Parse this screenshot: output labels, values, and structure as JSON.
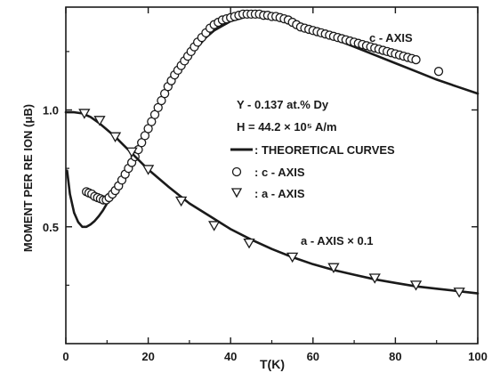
{
  "chart_data": {
    "type": "line",
    "xlabel": "T(K)",
    "ylabel": "MOMENT PER RE ION (μB)",
    "xlim": [
      0,
      100
    ],
    "ylim": [
      0,
      1.44
    ],
    "x_ticks": [
      0,
      20,
      40,
      60,
      80,
      100
    ],
    "x_tick_labels": [
      "0",
      "20",
      "40",
      "60",
      "80",
      "100"
    ],
    "y_ticks": [
      0.5,
      1.0
    ],
    "y_tick_labels": [
      "0.5",
      "1.0"
    ],
    "grid": false,
    "legend_position": "upper-middle",
    "legend": {
      "lines": [
        "Y - 0.137 at.% Dy",
        "H = 44.2 × 10⁵ A/m"
      ],
      "items": [
        {
          "marker": "line",
          "label": ": THEORETICAL CURVES"
        },
        {
          "marker": "circle",
          "label": ": c - AXIS"
        },
        {
          "marker": "triangle-down",
          "label": ": a - AXIS"
        }
      ]
    },
    "annotations": [
      "c - AXIS",
      "a - AXIS × 0.1"
    ],
    "series": [
      {
        "name": "c - AXIS",
        "kind": "theoretical-curve",
        "x": [
          0.3,
          1,
          2,
          3,
          4,
          5,
          6,
          7,
          8,
          9,
          10,
          12,
          14,
          16,
          18,
          20,
          22,
          24,
          26,
          28,
          30,
          32,
          34,
          36,
          38,
          40,
          42,
          44,
          46,
          48,
          50,
          52,
          54,
          56,
          58,
          60,
          65,
          70,
          75,
          80,
          85,
          90,
          95,
          100
        ],
        "y": [
          0.74,
          0.64,
          0.56,
          0.52,
          0.5,
          0.5,
          0.51,
          0.525,
          0.545,
          0.57,
          0.6,
          0.66,
          0.725,
          0.79,
          0.86,
          0.93,
          1.0,
          1.06,
          1.12,
          1.18,
          1.23,
          1.27,
          1.31,
          1.34,
          1.36,
          1.38,
          1.39,
          1.4,
          1.405,
          1.405,
          1.4,
          1.395,
          1.385,
          1.37,
          1.355,
          1.34,
          1.305,
          1.27,
          1.235,
          1.2,
          1.165,
          1.13,
          1.1,
          1.07
        ]
      },
      {
        "name": "c - AXIS",
        "kind": "measured",
        "marker": "circle",
        "x": [
          5,
          5.6,
          6.3,
          7,
          7.7,
          8.4,
          9.1,
          9.8,
          10.5,
          11.3,
          12,
          12.8,
          13.6,
          14.4,
          15.2,
          16,
          16.8,
          17.6,
          18.4,
          19.2,
          20,
          20.8,
          21.6,
          22.4,
          23.2,
          24,
          24.8,
          25.6,
          26.4,
          27.2,
          28,
          28.8,
          29.6,
          30.4,
          31.2,
          32,
          33,
          34,
          35,
          36,
          37,
          38,
          39,
          40,
          41,
          42,
          43,
          44,
          45,
          46,
          47,
          48,
          49,
          50,
          51,
          52,
          53,
          54,
          55,
          56,
          57,
          58,
          59,
          60,
          61,
          62,
          63,
          64,
          65,
          66,
          67,
          68,
          69,
          70,
          71,
          72,
          73,
          74,
          75,
          76,
          77,
          78,
          79,
          80,
          81,
          82,
          83,
          84,
          85,
          90.5
        ],
        "y": [
          0.65,
          0.645,
          0.64,
          0.63,
          0.625,
          0.62,
          0.615,
          0.615,
          0.625,
          0.64,
          0.655,
          0.675,
          0.7,
          0.725,
          0.75,
          0.775,
          0.8,
          0.83,
          0.86,
          0.89,
          0.92,
          0.95,
          0.98,
          1.01,
          1.04,
          1.07,
          1.1,
          1.125,
          1.15,
          1.17,
          1.19,
          1.21,
          1.23,
          1.25,
          1.27,
          1.29,
          1.31,
          1.33,
          1.35,
          1.365,
          1.375,
          1.385,
          1.39,
          1.395,
          1.4,
          1.405,
          1.41,
          1.41,
          1.41,
          1.41,
          1.41,
          1.405,
          1.405,
          1.4,
          1.4,
          1.395,
          1.39,
          1.385,
          1.375,
          1.365,
          1.355,
          1.35,
          1.345,
          1.34,
          1.335,
          1.33,
          1.325,
          1.32,
          1.315,
          1.31,
          1.305,
          1.3,
          1.295,
          1.29,
          1.285,
          1.28,
          1.275,
          1.27,
          1.265,
          1.26,
          1.255,
          1.25,
          1.245,
          1.24,
          1.235,
          1.23,
          1.225,
          1.22,
          1.215,
          1.165
        ]
      },
      {
        "name": "a - AXIS × 0.1",
        "kind": "theoretical-curve",
        "x": [
          0,
          2,
          4,
          6,
          8,
          10,
          12,
          14,
          16,
          18,
          20,
          25,
          30,
          35,
          40,
          45,
          50,
          55,
          60,
          65,
          70,
          75,
          80,
          85,
          90,
          95,
          100
        ],
        "y": [
          0.99,
          0.99,
          0.985,
          0.97,
          0.945,
          0.915,
          0.885,
          0.85,
          0.815,
          0.78,
          0.745,
          0.67,
          0.6,
          0.545,
          0.49,
          0.445,
          0.405,
          0.37,
          0.34,
          0.315,
          0.295,
          0.275,
          0.26,
          0.245,
          0.235,
          0.225,
          0.215
        ]
      },
      {
        "name": "a - AXIS × 0.1",
        "kind": "measured",
        "marker": "triangle-down",
        "x": [
          4.5,
          8.2,
          12,
          16,
          20,
          28,
          36,
          44.5,
          55,
          65,
          75,
          85,
          95.5
        ],
        "y": [
          0.985,
          0.955,
          0.885,
          0.82,
          0.745,
          0.61,
          0.505,
          0.43,
          0.37,
          0.325,
          0.28,
          0.25,
          0.22
        ]
      }
    ]
  }
}
